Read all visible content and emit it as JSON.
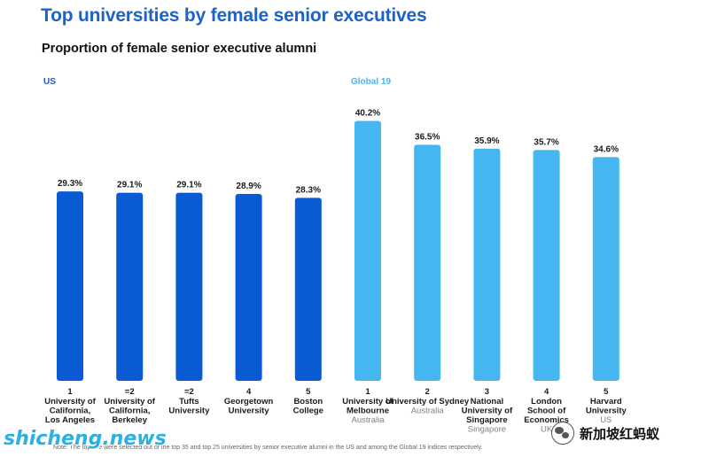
{
  "header": {
    "title": "Top universities by female senior executives",
    "subtitle": "Proportion of female senior executive alumni"
  },
  "groups": {
    "us_label": "US",
    "global_label": "Global 19"
  },
  "colors": {
    "title": "#1c63c7",
    "us_bar": "#0a5bd3",
    "global_bar": "#45b6ef",
    "us_group_label": "#1c56c4",
    "global_group_label": "#45b6ef",
    "country": "#808080"
  },
  "note": "Note: The top five were selected out of the top 35 and top 25 universities by senior executive alumni in the US and among the Global 19 indices respectively.",
  "watermarks": {
    "left": "shicheng.news",
    "right": "新加坡红蚂蚁"
  },
  "chart_data": {
    "type": "bar",
    "title": "Proportion of female senior executive alumni",
    "ylim": [
      0,
      45
    ],
    "grid": false,
    "legend": "none",
    "series": [
      {
        "group": "US",
        "bars": [
          {
            "rank": "1",
            "name": [
              "University of",
              "California,",
              "Los Angeles"
            ],
            "country": "",
            "value": 29.3,
            "label": "29.3%"
          },
          {
            "rank": "=2",
            "name": [
              "University of",
              "California,",
              "Berkeley"
            ],
            "country": "",
            "value": 29.1,
            "label": "29.1%"
          },
          {
            "rank": "=2",
            "name": [
              "Tufts",
              "University"
            ],
            "country": "",
            "value": 29.1,
            "label": "29.1%"
          },
          {
            "rank": "4",
            "name": [
              "Georgetown",
              "University"
            ],
            "country": "",
            "value": 28.9,
            "label": "28.9%"
          },
          {
            "rank": "5",
            "name": [
              "Boston",
              "College"
            ],
            "country": "",
            "value": 28.3,
            "label": "28.3%"
          }
        ]
      },
      {
        "group": "Global 19",
        "bars": [
          {
            "rank": "1",
            "name": [
              "University of",
              "Melbourne"
            ],
            "country": "Australia",
            "value": 40.2,
            "label": "40.2%"
          },
          {
            "rank": "2",
            "name": [
              "University of Sydney"
            ],
            "country": "Australia",
            "value": 36.5,
            "label": "36.5%"
          },
          {
            "rank": "3",
            "name": [
              "National",
              "University of",
              "Singapore"
            ],
            "country": "Singapore",
            "value": 35.9,
            "label": "35.9%"
          },
          {
            "rank": "4",
            "name": [
              "London",
              "School of",
              "Economics"
            ],
            "country": "UK",
            "value": 35.7,
            "label": "35.7%"
          },
          {
            "rank": "5",
            "name": [
              "Harvard",
              "University"
            ],
            "country": "US",
            "value": 34.6,
            "label": "34.6%"
          }
        ]
      }
    ]
  }
}
